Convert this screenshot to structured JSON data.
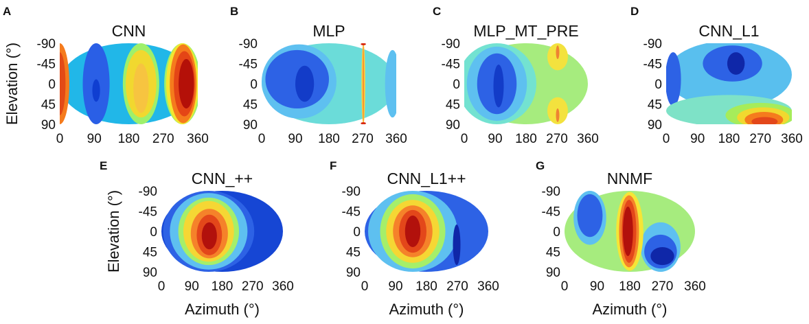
{
  "figure": {
    "shared": {
      "xticks": [
        "0",
        "90",
        "180",
        "270",
        "360"
      ],
      "yticks": [
        "-90",
        "-45",
        "0",
        "45",
        "90"
      ],
      "ylabel": "Elevation (°)",
      "xlabel": "Azimuth (°)"
    }
  },
  "chart_data": [
    {
      "letter": "A",
      "title": "CNN",
      "type": "heatmap",
      "xlabel": "",
      "ylabel": "Elevation (°)",
      "xlim": [
        0,
        360
      ],
      "ylim": [
        -90,
        90
      ],
      "colormap": "jet (dark blue = low, dark red = high)",
      "regions": [
        {
          "color": "#21b7e8",
          "center": [
            180,
            0
          ],
          "extent": [
            360,
            180
          ]
        },
        {
          "color": "#f57b1d",
          "center": [
            0,
            0
          ],
          "extent": [
            50,
            180
          ]
        },
        {
          "color": "#e34a16",
          "center": [
            0,
            0
          ],
          "extent": [
            30,
            140
          ]
        },
        {
          "color": "#2a5fe6",
          "center": [
            95,
            0
          ],
          "extent": [
            70,
            180
          ]
        },
        {
          "color": "#0f3ed1",
          "center": [
            95,
            15
          ],
          "extent": [
            20,
            50
          ]
        },
        {
          "color": "#9ef06b",
          "center": [
            212,
            0
          ],
          "extent": [
            95,
            180
          ]
        },
        {
          "color": "#f1d82f",
          "center": [
            212,
            0
          ],
          "extent": [
            80,
            150
          ]
        },
        {
          "color": "#f7c440",
          "center": [
            212,
            10
          ],
          "extent": [
            40,
            110
          ]
        },
        {
          "color": "#9ef06b",
          "center": [
            320,
            0
          ],
          "extent": [
            95,
            180
          ]
        },
        {
          "color": "#f3e62f",
          "center": [
            320,
            0
          ],
          "extent": [
            85,
            180
          ]
        },
        {
          "color": "#f57b1d",
          "center": [
            322,
            0
          ],
          "extent": [
            70,
            175
          ]
        },
        {
          "color": "#e44516",
          "center": [
            325,
            0
          ],
          "extent": [
            55,
            145
          ]
        },
        {
          "color": "#b41008",
          "center": [
            330,
            0
          ],
          "extent": [
            40,
            110
          ]
        }
      ]
    },
    {
      "letter": "B",
      "title": "MLP",
      "type": "heatmap",
      "xlabel": "",
      "ylabel": "",
      "xlim": [
        0,
        360
      ],
      "ylim": [
        -90,
        90
      ],
      "colormap": "jet (dark blue = low, dark red = high)",
      "regions": [
        {
          "color": "#6bdcd9",
          "center": [
            180,
            0
          ],
          "extent": [
            360,
            180
          ]
        },
        {
          "color": "#5ec0f0",
          "center": [
            100,
            -5
          ],
          "extent": [
            200,
            165
          ]
        },
        {
          "color": "#2d62e5",
          "center": [
            95,
            -10
          ],
          "extent": [
            170,
            130
          ]
        },
        {
          "color": "#133cc8",
          "center": [
            115,
            0
          ],
          "extent": [
            50,
            80
          ]
        },
        {
          "color": "#5ec0f0",
          "center": [
            350,
            0
          ],
          "extent": [
            40,
            150
          ]
        },
        {
          "color": "#ffd23e",
          "center": [
            272,
            0
          ],
          "extent": [
            10,
            180
          ]
        },
        {
          "color": "#f59432",
          "center": [
            272,
            0
          ],
          "extent": [
            4,
            180
          ]
        },
        {
          "color": "#d82a10",
          "center": [
            272,
            -88
          ],
          "extent": [
            14,
            5
          ]
        },
        {
          "color": "#d82a10",
          "center": [
            272,
            88
          ],
          "extent": [
            14,
            5
          ]
        }
      ]
    },
    {
      "letter": "C",
      "title": "MLP_MT_PRE",
      "type": "heatmap",
      "xlabel": "",
      "ylabel": "",
      "xlim": [
        0,
        360
      ],
      "ylim": [
        -90,
        90
      ],
      "colormap": "jet (dark blue = low, dark red = high)",
      "regions": [
        {
          "color": "#a6ec7e",
          "center": [
            180,
            0
          ],
          "extent": [
            360,
            180
          ]
        },
        {
          "color": "#73e2d1",
          "center": [
            95,
            0
          ],
          "extent": [
            230,
            180
          ]
        },
        {
          "color": "#5ec0f0",
          "center": [
            95,
            0
          ],
          "extent": [
            175,
            165
          ]
        },
        {
          "color": "#2d62e5",
          "center": [
            95,
            0
          ],
          "extent": [
            115,
            135
          ]
        },
        {
          "color": "#133cc8",
          "center": [
            100,
            5
          ],
          "extent": [
            30,
            95
          ]
        },
        {
          "color": "#f3e23e",
          "center": [
            272,
            -60
          ],
          "extent": [
            60,
            60
          ]
        },
        {
          "color": "#f3e23e",
          "center": [
            272,
            60
          ],
          "extent": [
            60,
            60
          ]
        },
        {
          "color": "#ee8332",
          "center": [
            272,
            -70
          ],
          "extent": [
            10,
            30
          ]
        },
        {
          "color": "#ee8332",
          "center": [
            272,
            70
          ],
          "extent": [
            10,
            30
          ]
        }
      ]
    },
    {
      "letter": "D",
      "title": "CNN_L1",
      "type": "heatmap",
      "xlabel": "",
      "ylabel": "",
      "xlim": [
        0,
        360
      ],
      "ylim": [
        -90,
        90
      ],
      "colormap": "jet (dark blue = low, dark red = high)",
      "regions": [
        {
          "color": "#59bfee",
          "center": [
            180,
            -20
          ],
          "extent": [
            360,
            150
          ]
        },
        {
          "color": "#2d62e5",
          "center": [
            20,
            -10
          ],
          "extent": [
            45,
            120
          ]
        },
        {
          "color": "#2d62e5",
          "center": [
            190,
            -45
          ],
          "extent": [
            170,
            80
          ]
        },
        {
          "color": "#0f27a8",
          "center": [
            200,
            -45
          ],
          "extent": [
            50,
            50
          ]
        },
        {
          "color": "#7ee2c7",
          "center": [
            180,
            60
          ],
          "extent": [
            360,
            70
          ]
        },
        {
          "color": "#a6ec5a",
          "center": [
            270,
            70
          ],
          "extent": [
            200,
            55
          ]
        },
        {
          "color": "#f1d82f",
          "center": [
            278,
            75
          ],
          "extent": [
            150,
            45
          ]
        },
        {
          "color": "#f57b1d",
          "center": [
            280,
            80
          ],
          "extent": [
            110,
            35
          ]
        },
        {
          "color": "#e3471a",
          "center": [
            282,
            84
          ],
          "extent": [
            75,
            20
          ]
        }
      ]
    },
    {
      "letter": "E",
      "title": "CNN_++",
      "type": "heatmap",
      "xlabel": "Azimuth (°)",
      "ylabel": "Elevation (°)",
      "xlim": [
        0,
        360
      ],
      "ylim": [
        -90,
        90
      ],
      "colormap": "jet (dark blue = low, dark red = high)",
      "regions": [
        {
          "color": "#1646d4",
          "center": [
            180,
            0
          ],
          "extent": [
            360,
            180
          ]
        },
        {
          "color": "#2d62e5",
          "center": [
            140,
            0
          ],
          "extent": [
            270,
            180
          ]
        },
        {
          "color": "#5ec0f0",
          "center": [
            140,
            0
          ],
          "extent": [
            230,
            170
          ]
        },
        {
          "color": "#a5ef6a",
          "center": [
            140,
            0
          ],
          "extent": [
            180,
            150
          ]
        },
        {
          "color": "#f5d734",
          "center": [
            140,
            0
          ],
          "extent": [
            150,
            135
          ]
        },
        {
          "color": "#f5822a",
          "center": [
            142,
            5
          ],
          "extent": [
            110,
            110
          ]
        },
        {
          "color": "#e3471a",
          "center": [
            142,
            8
          ],
          "extent": [
            75,
            90
          ]
        },
        {
          "color": "#b2110c",
          "center": [
            142,
            10
          ],
          "extent": [
            45,
            60
          ]
        }
      ]
    },
    {
      "letter": "F",
      "title": "CNN_L1++",
      "type": "heatmap",
      "xlabel": "Azimuth (°)",
      "ylabel": "",
      "xlim": [
        0,
        360
      ],
      "ylim": [
        -90,
        90
      ],
      "colormap": "jet (dark blue = low, dark red = high)",
      "regions": [
        {
          "color": "#2d62e5",
          "center": [
            180,
            0
          ],
          "extent": [
            360,
            180
          ]
        },
        {
          "color": "#5ec0f0",
          "center": [
            140,
            0
          ],
          "extent": [
            260,
            180
          ]
        },
        {
          "color": "#a5ef6a",
          "center": [
            140,
            0
          ],
          "extent": [
            190,
            165
          ]
        },
        {
          "color": "#f5d734",
          "center": [
            140,
            0
          ],
          "extent": [
            155,
            140
          ]
        },
        {
          "color": "#f5822a",
          "center": [
            140,
            0
          ],
          "extent": [
            115,
            115
          ]
        },
        {
          "color": "#e3471a",
          "center": [
            140,
            0
          ],
          "extent": [
            80,
            95
          ]
        },
        {
          "color": "#b2110c",
          "center": [
            140,
            0
          ],
          "extent": [
            45,
            70
          ]
        },
        {
          "color": "#0f27a8",
          "center": [
            268,
            30
          ],
          "extent": [
            22,
            90
          ]
        }
      ]
    },
    {
      "letter": "G",
      "title": "NNMF",
      "type": "heatmap",
      "xlabel": "Azimuth (°)",
      "ylabel": "",
      "xlim": [
        0,
        360
      ],
      "ylim": [
        -90,
        90
      ],
      "colormap": "jet (dark blue = low, dark red = high)",
      "regions": [
        {
          "color": "#a6ec7e",
          "center": [
            180,
            0
          ],
          "extent": [
            360,
            180
          ]
        },
        {
          "color": "#5ec0f0",
          "center": [
            70,
            -30
          ],
          "extent": [
            90,
            120
          ]
        },
        {
          "color": "#2d62e5",
          "center": [
            70,
            -35
          ],
          "extent": [
            70,
            95
          ]
        },
        {
          "color": "#5ec0f0",
          "center": [
            265,
            35
          ],
          "extent": [
            110,
            110
          ]
        },
        {
          "color": "#2d62e5",
          "center": [
            265,
            45
          ],
          "extent": [
            90,
            75
          ]
        },
        {
          "color": "#0f27a8",
          "center": [
            270,
            55
          ],
          "extent": [
            65,
            40
          ]
        },
        {
          "color": "#f5e536",
          "center": [
            180,
            0
          ],
          "extent": [
            75,
            175
          ]
        },
        {
          "color": "#f5822a",
          "center": [
            178,
            0
          ],
          "extent": [
            55,
            160
          ]
        },
        {
          "color": "#e3471a",
          "center": [
            178,
            0
          ],
          "extent": [
            40,
            140
          ]
        },
        {
          "color": "#b2110c",
          "center": [
            175,
            0
          ],
          "extent": [
            28,
            110
          ]
        }
      ]
    }
  ]
}
